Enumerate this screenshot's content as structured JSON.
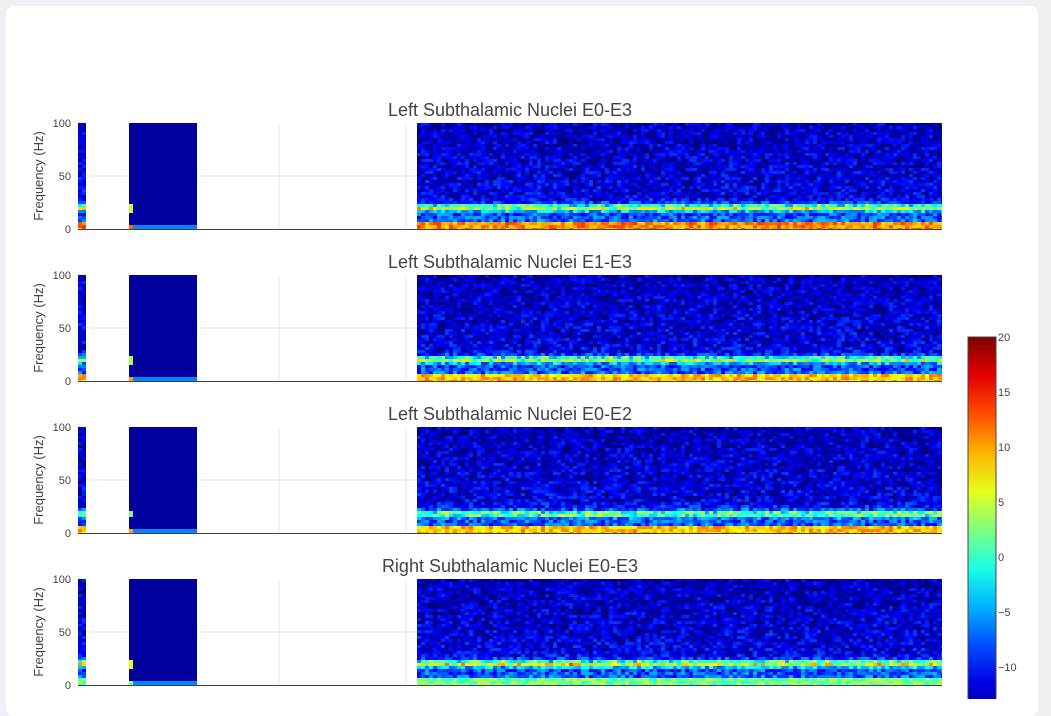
{
  "chart_data": {
    "type": "heatmap",
    "colorscale": "Jet",
    "colorbar": {
      "range": [
        -15,
        20
      ],
      "ticks": [
        "20",
        "15",
        "10",
        "5",
        "0",
        "−5",
        "−10"
      ]
    },
    "panels": [
      {
        "title": "Left Subthalamic Nuclei E0-E3",
        "ylabel": "Frequency (Hz)",
        "yticks": [
          "100",
          "50",
          "0"
        ],
        "ylim": [
          0,
          100
        ],
        "beta_band_hz": 20,
        "beta_level": 5,
        "low_level": 12
      },
      {
        "title": "Left Subthalamic Nuclei E1-E3",
        "ylabel": "Frequency (Hz)",
        "yticks": [
          "100",
          "50",
          "0"
        ],
        "ylim": [
          0,
          100
        ],
        "beta_band_hz": 20,
        "beta_level": 4,
        "low_level": 10
      },
      {
        "title": "Left Subthalamic Nuclei E0-E2",
        "ylabel": "Frequency (Hz)",
        "yticks": [
          "100",
          "50",
          "0"
        ],
        "ylim": [
          0,
          100
        ],
        "beta_band_hz": 18,
        "beta_level": 2,
        "low_level": 10
      },
      {
        "title": "Right Subthalamic Nuclei E0-E3",
        "ylabel": "Frequency (Hz)",
        "yticks": [
          "100",
          "50",
          "0"
        ],
        "ylim": [
          0,
          100
        ],
        "beta_band_hz": 20,
        "beta_level": 6,
        "low_level": 3
      }
    ]
  }
}
